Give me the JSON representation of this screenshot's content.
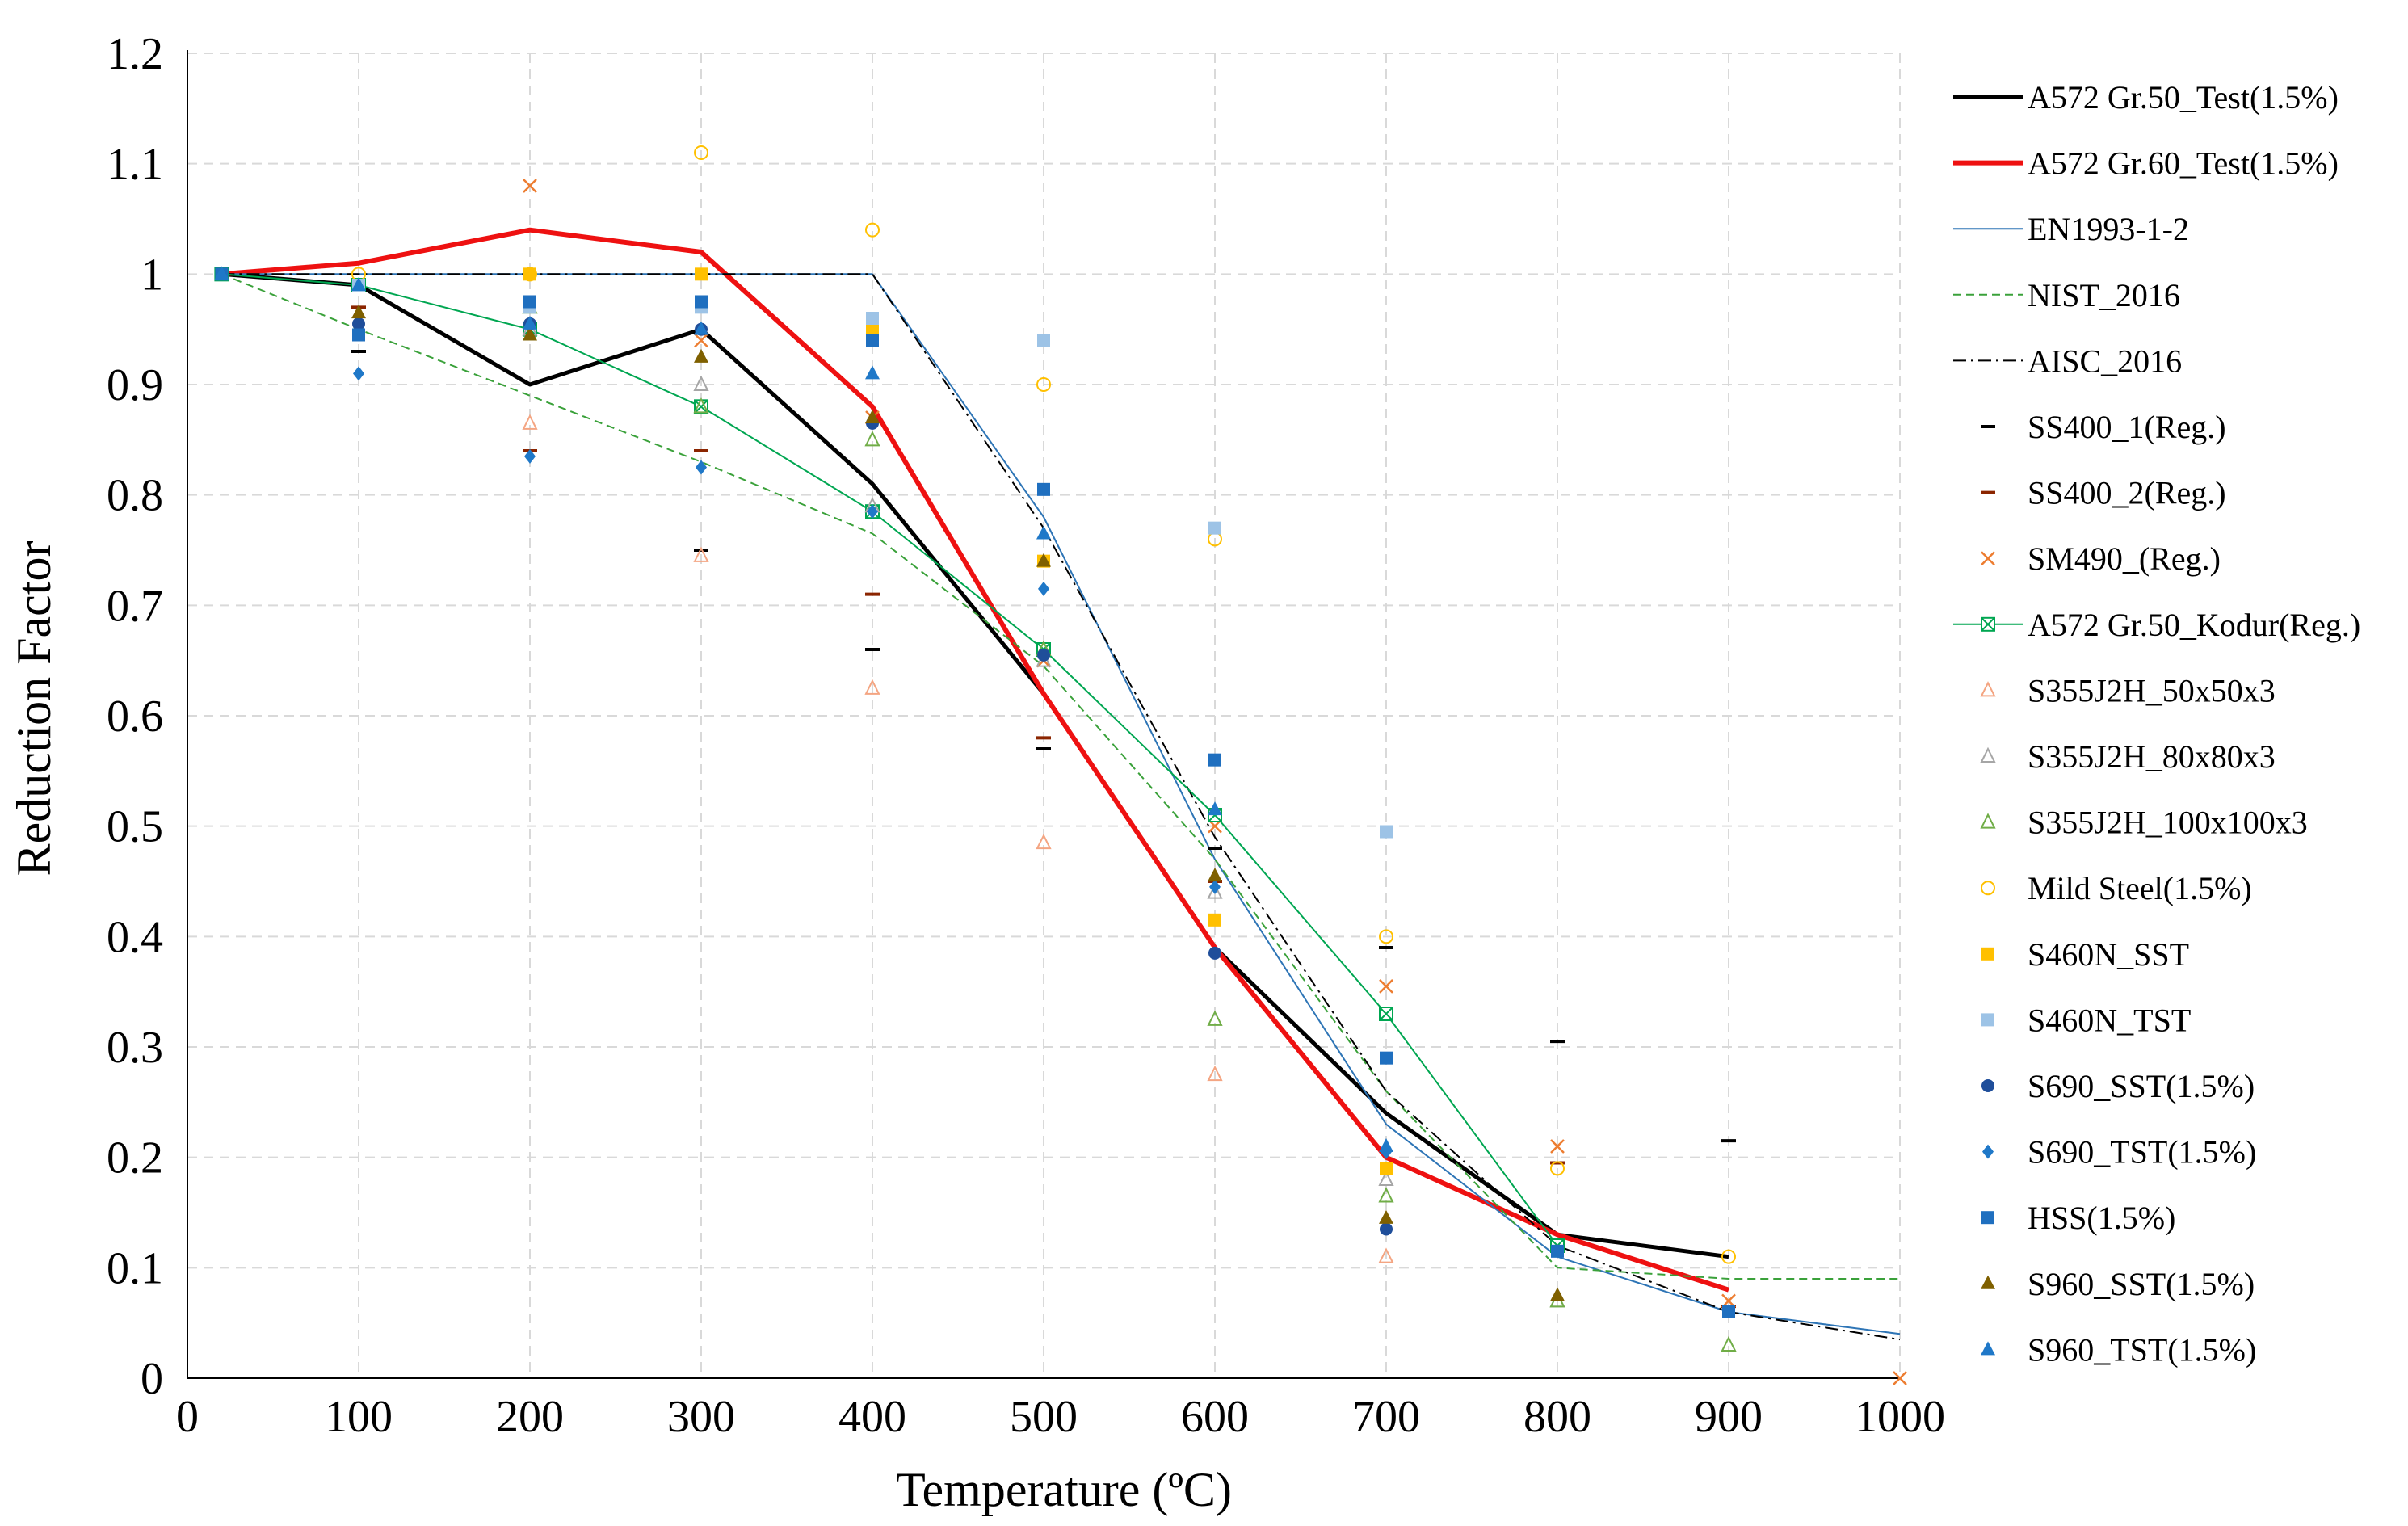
{
  "chart_data": {
    "type": "line",
    "title": "",
    "xlabel": "Temperature (ºC)",
    "ylabel": "Reduction Factor",
    "xlim": [
      0,
      1000
    ],
    "ylim": [
      0,
      1.2
    ],
    "grid": true,
    "legend_position": "right",
    "x_ticks": [
      0,
      100,
      200,
      300,
      400,
      500,
      600,
      700,
      800,
      900,
      1000
    ],
    "x_tick_labels": [
      "0",
      "100",
      "200",
      "300",
      "400",
      "500",
      "600",
      "700",
      "800",
      "900",
      "1000"
    ],
    "y_ticks": [
      0,
      0.1,
      0.2,
      0.3,
      0.4,
      0.5,
      0.6,
      0.7,
      0.8,
      0.9,
      1,
      1.1,
      1.2
    ],
    "y_tick_labels": [
      "0",
      "0.1",
      "0.2",
      "0.3",
      "0.4",
      "0.5",
      "0.6",
      "0.7",
      "0.8",
      "0.9",
      "1",
      "1.1",
      "1.2"
    ],
    "series": [
      {
        "name": "A572 Gr.50_Test(1.5%)",
        "style": "line",
        "color": "#000000",
        "width": 5,
        "x": [
          20,
          100,
          200,
          300,
          400,
          500,
          600,
          700,
          800,
          900
        ],
        "y": [
          1.0,
          0.99,
          0.9,
          0.95,
          0.81,
          0.62,
          0.39,
          0.24,
          0.13,
          0.11
        ]
      },
      {
        "name": "A572 Gr.60_Test(1.5%)",
        "style": "line",
        "color": "#ee1111",
        "width": 6,
        "x": [
          20,
          100,
          200,
          300,
          400,
          500,
          600,
          700,
          800,
          900
        ],
        "y": [
          1.0,
          1.01,
          1.04,
          1.02,
          0.88,
          0.62,
          0.39,
          0.2,
          0.13,
          0.08
        ]
      },
      {
        "name": "EN1993-1-2",
        "style": "line",
        "color": "#2e75b6",
        "width": 2,
        "x": [
          20,
          100,
          200,
          300,
          400,
          500,
          600,
          700,
          800,
          900,
          1000
        ],
        "y": [
          1.0,
          1.0,
          1.0,
          1.0,
          1.0,
          0.78,
          0.47,
          0.23,
          0.11,
          0.06,
          0.04
        ]
      },
      {
        "name": "NIST_2016",
        "style": "dashed",
        "color": "#3aa13a",
        "width": 2,
        "x": [
          20,
          100,
          200,
          300,
          400,
          500,
          600,
          700,
          800,
          900,
          1000
        ],
        "y": [
          1.0,
          0.95,
          0.89,
          0.83,
          0.765,
          0.645,
          0.47,
          0.26,
          0.1,
          0.09,
          0.09
        ]
      },
      {
        "name": "AISC_2016",
        "style": "dashdot",
        "color": "#000000",
        "width": 2,
        "x": [
          20,
          100,
          200,
          300,
          400,
          500,
          600,
          700,
          800,
          900,
          1000
        ],
        "y": [
          1.0,
          1.0,
          1.0,
          1.0,
          1.0,
          0.77,
          0.49,
          0.26,
          0.12,
          0.06,
          0.035
        ]
      },
      {
        "name": "SS400_1(Reg.)",
        "style": "marker",
        "marker": "dash",
        "color": "#000000",
        "x": [
          100,
          200,
          300,
          400,
          500,
          600,
          700,
          800,
          900
        ],
        "y": [
          0.93,
          0.84,
          0.75,
          0.66,
          0.57,
          0.48,
          0.39,
          0.305,
          0.215
        ]
      },
      {
        "name": "SS400_2(Reg.)",
        "style": "marker",
        "marker": "dash",
        "color": "#8b2500",
        "x": [
          100,
          200,
          300,
          400,
          500,
          600,
          700,
          800,
          900
        ],
        "y": [
          0.97,
          0.84,
          0.84,
          0.71,
          0.58,
          0.45,
          0.33,
          0.195,
          0.065
        ]
      },
      {
        "name": "SM490_(Reg.)",
        "style": "marker",
        "marker": "x",
        "color": "#ed7d31",
        "x": [
          100,
          200,
          300,
          400,
          500,
          600,
          700,
          800,
          900,
          1000
        ],
        "y": [
          0.99,
          1.08,
          0.94,
          0.87,
          0.65,
          0.5,
          0.355,
          0.21,
          0.07,
          0.0
        ]
      },
      {
        "name": "A572 Gr.50_Kodur(Reg.)",
        "style": "line-marker",
        "marker": "boxx",
        "color": "#00a651",
        "width": 2,
        "x": [
          20,
          100,
          200,
          300,
          400,
          500,
          600,
          700,
          800
        ],
        "y": [
          1.0,
          0.99,
          0.95,
          0.88,
          0.785,
          0.66,
          0.51,
          0.33,
          0.12
        ]
      },
      {
        "name": "S355J2H_50x50x3",
        "style": "marker",
        "marker": "triangle-open",
        "color": "#f4a582",
        "x": [
          200,
          300,
          400,
          500,
          600,
          700
        ],
        "y": [
          0.865,
          0.745,
          0.625,
          0.485,
          0.275,
          0.11
        ]
      },
      {
        "name": "S355J2H_80x80x3",
        "style": "marker",
        "marker": "triangle-open",
        "color": "#a6a6a6",
        "x": [
          200,
          300,
          400,
          500,
          600,
          700,
          800
        ],
        "y": [
          0.95,
          0.9,
          0.79,
          0.65,
          0.44,
          0.18,
          0.07
        ]
      },
      {
        "name": "S355J2H_100x100x3",
        "style": "marker",
        "marker": "triangle-open",
        "color": "#70ad47",
        "x": [
          200,
          300,
          400,
          500,
          600,
          700,
          800,
          900
        ],
        "y": [
          0.97,
          0.88,
          0.85,
          0.66,
          0.325,
          0.165,
          0.07,
          0.03
        ]
      },
      {
        "name": "Mild Steel(1.5%)",
        "style": "marker",
        "marker": "circle-open",
        "color": "#ffc000",
        "x": [
          100,
          200,
          300,
          400,
          500,
          600,
          700,
          800,
          900
        ],
        "y": [
          1.0,
          1.0,
          1.11,
          1.04,
          0.9,
          0.76,
          0.4,
          0.19,
          0.11
        ]
      },
      {
        "name": "S460N_SST",
        "style": "marker",
        "marker": "square-fill",
        "color": "#ffc000",
        "x": [
          200,
          300,
          400,
          500,
          600,
          700
        ],
        "y": [
          1.0,
          1.0,
          0.95,
          0.74,
          0.415,
          0.19
        ]
      },
      {
        "name": "S460N_TST",
        "style": "marker",
        "marker": "square-fill",
        "color": "#9dc3e6",
        "x": [
          100,
          200,
          300,
          400,
          500,
          600,
          700
        ],
        "y": [
          0.99,
          0.97,
          0.97,
          0.96,
          0.94,
          0.77,
          0.495
        ]
      },
      {
        "name": "S690_SST(1.5%)",
        "style": "marker",
        "marker": "circle-fill",
        "color": "#1f4e9a",
        "x": [
          100,
          200,
          300,
          400,
          500,
          600,
          700
        ],
        "y": [
          0.955,
          0.955,
          0.95,
          0.865,
          0.655,
          0.385,
          0.135
        ]
      },
      {
        "name": "S690_TST(1.5%)",
        "style": "marker",
        "marker": "diamond-fill",
        "color": "#1f78c8",
        "x": [
          100,
          200,
          300,
          400,
          500,
          600,
          700
        ],
        "y": [
          0.91,
          0.835,
          0.825,
          0.785,
          0.715,
          0.445,
          0.205
        ]
      },
      {
        "name": "HSS(1.5%)",
        "style": "marker",
        "marker": "square-fill",
        "color": "#1f6fbf",
        "x": [
          20,
          100,
          200,
          300,
          400,
          500,
          600,
          700,
          800,
          900
        ],
        "y": [
          1.0,
          0.945,
          0.975,
          0.975,
          0.94,
          0.805,
          0.56,
          0.29,
          0.115,
          0.06
        ]
      },
      {
        "name": "S960_SST(1.5%)",
        "style": "marker",
        "marker": "triangle-fill",
        "color": "#7f6000",
        "x": [
          100,
          200,
          300,
          400,
          500,
          600,
          700,
          800
        ],
        "y": [
          0.965,
          0.945,
          0.925,
          0.87,
          0.74,
          0.455,
          0.145,
          0.075
        ]
      },
      {
        "name": "S960_TST(1.5%)",
        "style": "marker",
        "marker": "triangle-fill",
        "color": "#1f78c8",
        "x": [
          20,
          100,
          200,
          300,
          400,
          500,
          600,
          700
        ],
        "y": [
          1.0,
          0.99,
          0.955,
          0.95,
          0.91,
          0.765,
          0.515,
          0.21
        ]
      }
    ]
  }
}
